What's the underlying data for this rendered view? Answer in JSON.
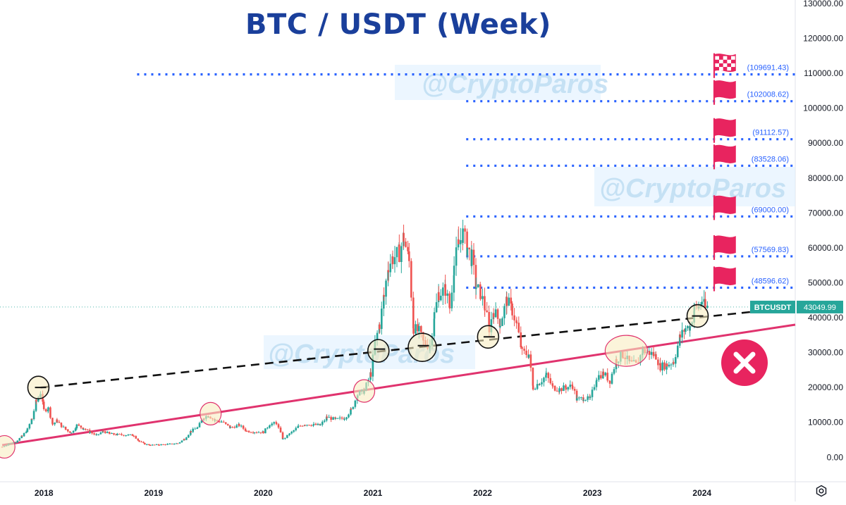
{
  "chart_data": {
    "type": "candlestick",
    "title": "BTC / USDT (Week)",
    "symbol": "BTCUSDT",
    "last_price": 43049.99,
    "last_price_label": "43049.99",
    "watermark": "@CryptoParos",
    "y_axis": {
      "ticks": [
        0,
        10000,
        20000,
        30000,
        40000,
        50000,
        60000,
        70000,
        80000,
        90000,
        100000,
        110000,
        120000,
        130000
      ],
      "tick_labels": [
        "0.00",
        "10000.00",
        "20000.00",
        "30000.00",
        "40000.00",
        "50000.00",
        "60000.00",
        "70000.00",
        "80000.00",
        "90000.00",
        "100000.00",
        "110000.00",
        "120000.00",
        "130000.00"
      ]
    },
    "x_axis": {
      "tick_labels": [
        "2018",
        "2019",
        "2020",
        "2021",
        "2022",
        "2023",
        "2024"
      ],
      "ticks": [
        2018.0,
        2019.0,
        2020.0,
        2021.0,
        2022.0,
        2023.0,
        2024.0
      ]
    },
    "x_range": [
      2017.6,
      2024.85
    ],
    "y_range": [
      -7000,
      131000
    ],
    "price_path": [
      [
        2017.62,
        3000
      ],
      [
        2017.68,
        3900
      ],
      [
        2017.74,
        4400
      ],
      [
        2017.8,
        6000
      ],
      [
        2017.85,
        8000
      ],
      [
        2017.89,
        11000
      ],
      [
        2017.93,
        16000
      ],
      [
        2017.97,
        18500
      ],
      [
        2018.0,
        13500
      ],
      [
        2018.04,
        14000
      ],
      [
        2018.08,
        9500
      ],
      [
        2018.12,
        10500
      ],
      [
        2018.16,
        9000
      ],
      [
        2018.2,
        8000
      ],
      [
        2018.25,
        7000
      ],
      [
        2018.3,
        9200
      ],
      [
        2018.36,
        8300
      ],
      [
        2018.42,
        7200
      ],
      [
        2018.48,
        6300
      ],
      [
        2018.54,
        7500
      ],
      [
        2018.6,
        6700
      ],
      [
        2018.67,
        6500
      ],
      [
        2018.75,
        6400
      ],
      [
        2018.82,
        6300
      ],
      [
        2018.87,
        4500
      ],
      [
        2018.92,
        3800
      ],
      [
        2018.97,
        3500
      ],
      [
        2019.05,
        3600
      ],
      [
        2019.15,
        3800
      ],
      [
        2019.22,
        4000
      ],
      [
        2019.28,
        5200
      ],
      [
        2019.34,
        7500
      ],
      [
        2019.4,
        8500
      ],
      [
        2019.46,
        11500
      ],
      [
        2019.5,
        12000
      ],
      [
        2019.56,
        10500
      ],
      [
        2019.62,
        10200
      ],
      [
        2019.7,
        8500
      ],
      [
        2019.78,
        9200
      ],
      [
        2019.85,
        7500
      ],
      [
        2019.92,
        7300
      ],
      [
        2020.0,
        7200
      ],
      [
        2020.06,
        9500
      ],
      [
        2020.12,
        9800
      ],
      [
        2020.18,
        5200
      ],
      [
        2020.24,
        6700
      ],
      [
        2020.32,
        8800
      ],
      [
        2020.38,
        9500
      ],
      [
        2020.46,
        9300
      ],
      [
        2020.52,
        9200
      ],
      [
        2020.58,
        11500
      ],
      [
        2020.66,
        10800
      ],
      [
        2020.74,
        11300
      ],
      [
        2020.8,
        13500
      ],
      [
        2020.86,
        18000
      ],
      [
        2020.92,
        19000
      ],
      [
        2020.98,
        24000
      ],
      [
        2021.02,
        33000
      ],
      [
        2021.06,
        38000
      ],
      [
        2021.1,
        46000
      ],
      [
        2021.14,
        55000
      ],
      [
        2021.18,
        57000
      ],
      [
        2021.24,
        58500
      ],
      [
        2021.28,
        63000
      ],
      [
        2021.33,
        56000
      ],
      [
        2021.37,
        37000
      ],
      [
        2021.42,
        36000
      ],
      [
        2021.46,
        33000
      ],
      [
        2021.52,
        32000
      ],
      [
        2021.56,
        41000
      ],
      [
        2021.6,
        47000
      ],
      [
        2021.66,
        48000
      ],
      [
        2021.7,
        43000
      ],
      [
        2021.74,
        55000
      ],
      [
        2021.78,
        61000
      ],
      [
        2021.82,
        64000
      ],
      [
        2021.86,
        60000
      ],
      [
        2021.9,
        57000
      ],
      [
        2021.94,
        49000
      ],
      [
        2021.98,
        47000
      ],
      [
        2022.02,
        43000
      ],
      [
        2022.06,
        37000
      ],
      [
        2022.1,
        42000
      ],
      [
        2022.16,
        38500
      ],
      [
        2022.22,
        45000
      ],
      [
        2022.27,
        42000
      ],
      [
        2022.31,
        38000
      ],
      [
        2022.36,
        30000
      ],
      [
        2022.42,
        29500
      ],
      [
        2022.46,
        20000
      ],
      [
        2022.52,
        21500
      ],
      [
        2022.58,
        23500
      ],
      [
        2022.64,
        20000
      ],
      [
        2022.7,
        19500
      ],
      [
        2022.76,
        20000
      ],
      [
        2022.82,
        20500
      ],
      [
        2022.86,
        16500
      ],
      [
        2022.92,
        17000
      ],
      [
        2022.98,
        16600
      ],
      [
        2023.04,
        23000
      ],
      [
        2023.1,
        24000
      ],
      [
        2023.16,
        22000
      ],
      [
        2023.22,
        28000
      ],
      [
        2023.28,
        29500
      ],
      [
        2023.34,
        27000
      ],
      [
        2023.4,
        26500
      ],
      [
        2023.46,
        30500
      ],
      [
        2023.52,
        30000
      ],
      [
        2023.58,
        29000
      ],
      [
        2023.62,
        26000
      ],
      [
        2023.68,
        26500
      ],
      [
        2023.74,
        27500
      ],
      [
        2023.8,
        34500
      ],
      [
        2023.85,
        37000
      ],
      [
        2023.89,
        37500
      ],
      [
        2023.93,
        42500
      ],
      [
        2023.97,
        43000
      ],
      [
        2024.0,
        45000
      ],
      [
        2024.03,
        42500
      ],
      [
        2024.05,
        43050
      ]
    ],
    "resistance_levels": [
      {
        "label": "(48596.62)",
        "value": 48596.62,
        "x_start": 2021.85
      },
      {
        "label": "(57569.83)",
        "value": 57569.83,
        "x_start": 2021.85
      },
      {
        "label": "(69000.00)",
        "value": 69000.0,
        "x_start": 2021.85
      },
      {
        "label": "(83528.06)",
        "value": 83528.06,
        "x_start": 2021.85
      },
      {
        "label": "(91112.57)",
        "value": 91112.57,
        "x_start": 2021.85
      },
      {
        "label": "(102008.62)",
        "value": 102008.62,
        "x_start": 2021.85
      },
      {
        "label": "(109691.43)",
        "value": 109691.43,
        "x_start": 2018.85
      }
    ],
    "support_line": {
      "color": "#e0336e",
      "points": [
        [
          2017.62,
          3500
        ],
        [
          2024.85,
          38000
        ]
      ]
    },
    "dashed_trendline": {
      "color": "#111111",
      "points": [
        [
          2017.97,
          20000
        ],
        [
          2024.85,
          43000
        ]
      ]
    },
    "highlight_circles": [
      {
        "x": 2017.64,
        "y": 3000,
        "color": "#e0336e"
      },
      {
        "x": 2017.95,
        "y": 20000,
        "color": "#111111"
      },
      {
        "x": 2019.52,
        "y": 12500,
        "color": "#e0336e"
      },
      {
        "x": 2020.92,
        "y": 19000,
        "color": "#e0336e"
      },
      {
        "x": 2021.05,
        "y": 30500,
        "color": "#111111"
      },
      {
        "x": 2021.45,
        "y": 31500,
        "color": "#111111"
      },
      {
        "x": 2022.05,
        "y": 34500,
        "color": "#111111"
      },
      {
        "x": 2023.31,
        "y": 30500,
        "color": "#e0336e"
      },
      {
        "x": 2023.96,
        "y": 40500,
        "color": "#111111"
      }
    ],
    "colors": {
      "up": "#26a69a",
      "down": "#ef5350",
      "level": "#2962ff",
      "flag": "#e8245f",
      "axis_text": "#131722",
      "title": "#1a3f9b"
    }
  }
}
